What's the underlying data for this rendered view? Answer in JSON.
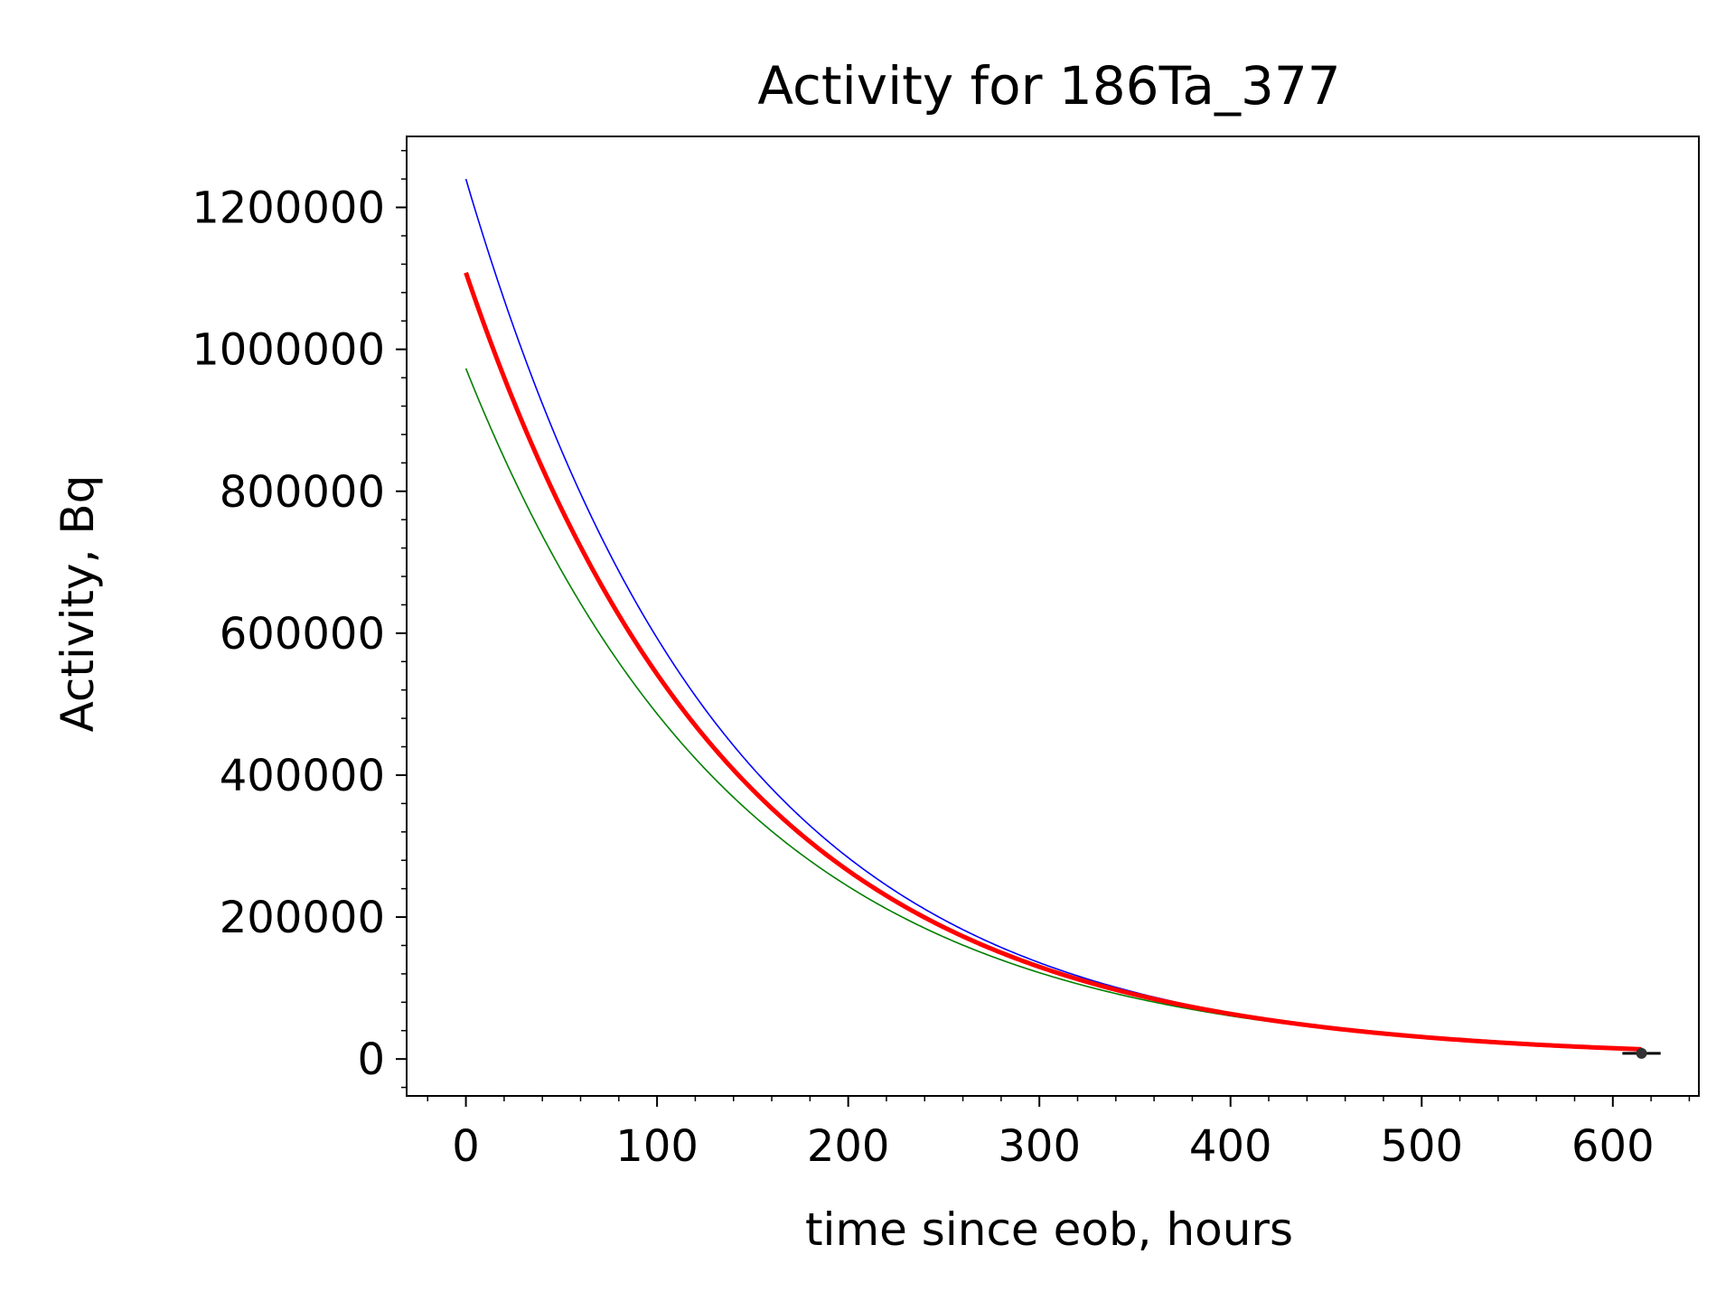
{
  "chart_data": {
    "type": "line",
    "title": "Activity for 186Ta_377",
    "xlabel": "time since eob, hours",
    "ylabel": "Activity, Bq",
    "xlim": [
      -31,
      645
    ],
    "ylim": [
      -52000,
      1300000
    ],
    "xticks": [
      0,
      100,
      200,
      300,
      400,
      500,
      600
    ],
    "yticks": [
      0,
      200000,
      400000,
      600000,
      800000,
      1000000,
      1200000
    ],
    "x_minor_step": 20,
    "y_minor_step": 40000,
    "grid": false,
    "series": [
      {
        "color": "#0000ff",
        "line_width": "thin",
        "A0": 1240000,
        "halflife_hours": 94,
        "x_range": [
          0,
          615
        ]
      },
      {
        "color": "#ff0000",
        "line_width": "thick",
        "A0": 1108000,
        "halflife_hours": 97,
        "x_range": [
          0,
          615
        ]
      },
      {
        "color": "#008000",
        "line_width": "thin",
        "A0": 973000,
        "halflife_hours": 100,
        "x_range": [
          0,
          615
        ]
      }
    ],
    "measurements": [
      {
        "x": 615,
        "y": 8000,
        "xerr": 10,
        "color": "#000000"
      }
    ]
  }
}
